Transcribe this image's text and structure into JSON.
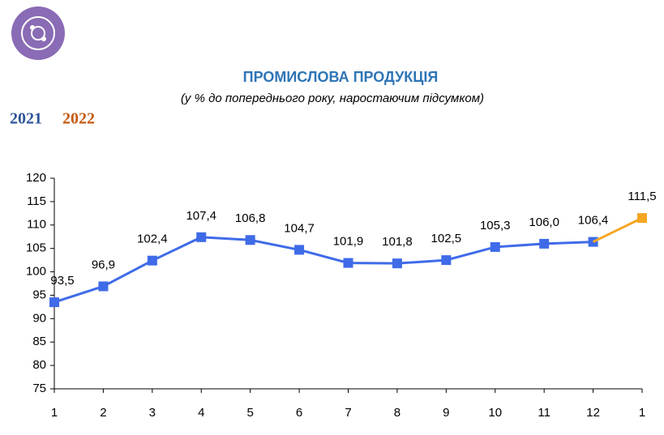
{
  "chart_data": {
    "type": "line",
    "title": "ПРОМИСЛОВА ПРОДУКЦІЯ",
    "subtitle": "(у % до попереднього року, наростаючим підсумком)",
    "categories": [
      "1",
      "2",
      "3",
      "4",
      "5",
      "6",
      "7",
      "8",
      "9",
      "10",
      "11",
      "12",
      "1"
    ],
    "series": [
      {
        "name": "2021",
        "color": "#3f6be8",
        "legend_color": "#2f5597",
        "values": [
          93.5,
          96.9,
          102.4,
          107.4,
          106.8,
          104.7,
          101.9,
          101.8,
          102.5,
          105.3,
          106.0,
          106.4,
          null
        ],
        "value_labels": [
          "93,5",
          "96,9",
          "102,4",
          "107,4",
          "106,8",
          "104,7",
          "101,9",
          "101,8",
          "102,5",
          "105,3",
          "106,0",
          "106,4",
          null
        ]
      },
      {
        "name": "2022",
        "color": "#f5a623",
        "legend_color": "#c55a11",
        "values": [
          null,
          null,
          null,
          null,
          null,
          null,
          null,
          null,
          null,
          null,
          null,
          null,
          111.5
        ],
        "value_labels": [
          null,
          null,
          null,
          null,
          null,
          null,
          null,
          null,
          null,
          null,
          null,
          null,
          "111,5"
        ]
      }
    ],
    "ylim": [
      75,
      120
    ],
    "yticks": [
      75,
      80,
      85,
      90,
      95,
      100,
      105,
      110,
      115,
      120
    ],
    "grid": false
  }
}
